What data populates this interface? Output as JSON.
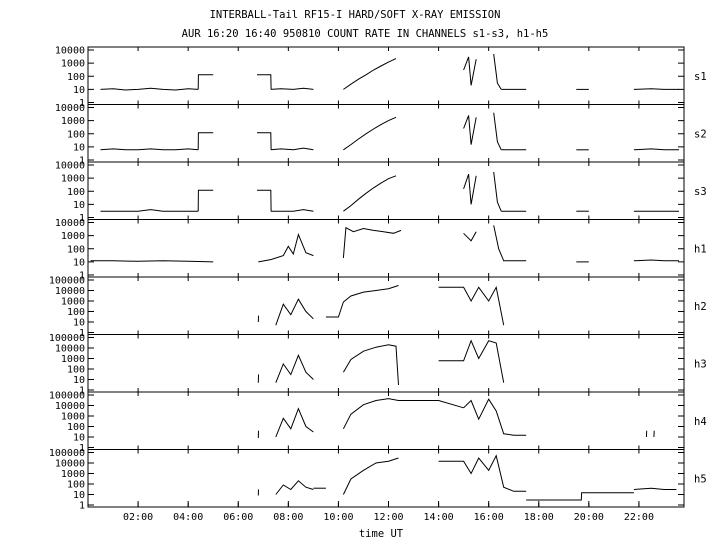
{
  "chart_data": {
    "type": "line",
    "title": "INTERBALL-Tail RF15-I HARD/SOFT X-RAY EMISSION",
    "subtitle": "AUR 16:20 16:40 950810  COUNT RATE IN CHANNELS s1-s3, h1-h5",
    "xlabel": "time UT",
    "x_unit": "hours UT",
    "xlim": [
      0,
      23.8
    ],
    "x_ticks": [
      2,
      4,
      6,
      8,
      10,
      12,
      14,
      16,
      18,
      20,
      22
    ],
    "x_tick_labels": [
      "02:00",
      "04:00",
      "06:00",
      "08:00",
      "10:00",
      "12:00",
      "14:00",
      "16:00",
      "18:00",
      "20:00",
      "22:00"
    ],
    "y_scale": "log",
    "series": [
      {
        "name": "s1",
        "ylim": [
          1,
          10000
        ],
        "y_tick_labels": [
          "10000",
          "1000",
          "100",
          "10",
          "1"
        ],
        "segments": [
          {
            "x": [
              0.5,
              1.0,
              1.5,
              2.0,
              2.5,
              3.0,
              3.5,
              4.0,
              4.4
            ],
            "y": [
              10,
              11,
              9,
              10,
              12,
              10,
              9,
              11,
              10
            ]
          },
          {
            "x": [
              4.4,
              4.41,
              5.0
            ],
            "y": [
              10,
              130,
              130
            ]
          },
          {
            "x": [
              6.75,
              7.3,
              7.31
            ],
            "y": [
              130,
              130,
              10
            ]
          },
          {
            "x": [
              7.3,
              7.7,
              8.2,
              8.6,
              9.0
            ],
            "y": [
              10,
              11,
              10,
              12,
              10
            ]
          },
          {
            "x": [
              10.2,
              10.5,
              10.8,
              11.1,
              11.4,
              11.7,
              12.0,
              12.3
            ],
            "y": [
              10,
              25,
              60,
              130,
              300,
              600,
              1200,
              2200
            ]
          },
          {
            "x": [
              15.0,
              15.2,
              15.3,
              15.5
            ],
            "y": [
              300,
              3000,
              20,
              2000
            ]
          },
          {
            "x": [
              16.2,
              16.35,
              16.5
            ],
            "y": [
              5000,
              30,
              10
            ]
          },
          {
            "x": [
              16.5,
              17.0,
              17.5
            ],
            "y": [
              10,
              10,
              10
            ]
          },
          {
            "x": [
              19.5,
              20.0
            ],
            "y": [
              10,
              10
            ]
          },
          {
            "x": [
              21.8,
              22.5,
              23.0,
              23.6
            ],
            "y": [
              10,
              11,
              10,
              10
            ]
          }
        ]
      },
      {
        "name": "s2",
        "ylim": [
          1,
          10000
        ],
        "y_tick_labels": [
          "10000",
          "1000",
          "100",
          "10",
          "1"
        ],
        "segments": [
          {
            "x": [
              0.5,
              1.0,
              1.5,
              2.0,
              2.5,
              3.0,
              3.5,
              4.0,
              4.4
            ],
            "y": [
              6,
              7,
              6,
              6,
              7,
              6,
              6,
              7,
              6
            ]
          },
          {
            "x": [
              4.4,
              4.41,
              5.0
            ],
            "y": [
              6,
              120,
              120
            ]
          },
          {
            "x": [
              6.75,
              7.3,
              7.31
            ],
            "y": [
              120,
              120,
              6
            ]
          },
          {
            "x": [
              7.3,
              7.7,
              8.2,
              8.6,
              9.0
            ],
            "y": [
              6,
              7,
              6,
              8,
              6
            ]
          },
          {
            "x": [
              10.2,
              10.5,
              10.8,
              11.1,
              11.4,
              11.7,
              12.0,
              12.3
            ],
            "y": [
              6,
              15,
              40,
              100,
              230,
              500,
              1000,
              1800
            ]
          },
          {
            "x": [
              15.0,
              15.2,
              15.3,
              15.5
            ],
            "y": [
              250,
              2500,
              15,
              1800
            ]
          },
          {
            "x": [
              16.2,
              16.35,
              16.5
            ],
            "y": [
              4000,
              25,
              6
            ]
          },
          {
            "x": [
              16.5,
              17.0,
              17.5
            ],
            "y": [
              6,
              6,
              6
            ]
          },
          {
            "x": [
              19.5,
              20.0
            ],
            "y": [
              6,
              6
            ]
          },
          {
            "x": [
              21.8,
              22.5,
              23.0,
              23.6
            ],
            "y": [
              6,
              7,
              6,
              6
            ]
          }
        ]
      },
      {
        "name": "s3",
        "ylim": [
          1,
          10000
        ],
        "y_tick_labels": [
          "10000",
          "1000",
          "100",
          "10",
          "1"
        ],
        "segments": [
          {
            "x": [
              0.5,
              1.0,
              1.5,
              2.0,
              2.5,
              3.0,
              3.5,
              4.0,
              4.4
            ],
            "y": [
              3,
              3,
              3,
              3,
              4,
              3,
              3,
              3,
              3
            ]
          },
          {
            "x": [
              4.4,
              4.41,
              5.0
            ],
            "y": [
              3,
              120,
              120
            ]
          },
          {
            "x": [
              6.75,
              7.3,
              7.31
            ],
            "y": [
              120,
              120,
              3
            ]
          },
          {
            "x": [
              7.3,
              7.7,
              8.2,
              8.6,
              9.0
            ],
            "y": [
              3,
              3,
              3,
              4,
              3
            ]
          },
          {
            "x": [
              10.2,
              10.5,
              10.8,
              11.1,
              11.4,
              11.7,
              12.0,
              12.3
            ],
            "y": [
              3,
              8,
              25,
              70,
              180,
              420,
              900,
              1500
            ]
          },
          {
            "x": [
              15.0,
              15.2,
              15.3,
              15.5
            ],
            "y": [
              150,
              2000,
              10,
              1500
            ]
          },
          {
            "x": [
              16.2,
              16.35,
              16.5
            ],
            "y": [
              3000,
              15,
              3
            ]
          },
          {
            "x": [
              16.5,
              17.0,
              17.5
            ],
            "y": [
              3,
              3,
              3
            ]
          },
          {
            "x": [
              19.5,
              20.0
            ],
            "y": [
              3,
              3
            ]
          },
          {
            "x": [
              21.8,
              22.5,
              23.0,
              23.6
            ],
            "y": [
              3,
              3,
              3,
              3
            ]
          }
        ]
      },
      {
        "name": "h1",
        "ylim": [
          1,
          10000
        ],
        "y_tick_labels": [
          "10000",
          "1000",
          "100",
          "10",
          "1"
        ],
        "segments": [
          {
            "x": [
              0.1,
              1.0,
              2.0,
              3.0,
              4.0,
              5.0
            ],
            "y": [
              12,
              12,
              11,
              12,
              11,
              10
            ]
          },
          {
            "x": [
              6.8,
              7.3,
              7.8,
              8.0,
              8.2,
              8.4,
              8.7,
              9.0
            ],
            "y": [
              10,
              15,
              30,
              150,
              40,
              1200,
              50,
              30
            ]
          },
          {
            "x": [
              10.2,
              10.3,
              10.6,
              11.0,
              11.4,
              11.8,
              12.2,
              12.5
            ],
            "y": [
              20,
              4000,
              2000,
              3500,
              2500,
              2000,
              1500,
              2500
            ]
          },
          {
            "x": [
              15.0,
              15.3,
              15.5
            ],
            "y": [
              1500,
              400,
              2000
            ]
          },
          {
            "x": [
              16.2,
              16.4,
              16.6,
              17.0,
              17.5
            ],
            "y": [
              6000,
              100,
              12,
              12,
              12
            ]
          },
          {
            "x": [
              19.5,
              20.0
            ],
            "y": [
              10,
              10
            ]
          },
          {
            "x": [
              21.8,
              22.5,
              23.0,
              23.6
            ],
            "y": [
              12,
              14,
              12,
              12
            ]
          }
        ]
      },
      {
        "name": "h2",
        "ylim": [
          1,
          100000
        ],
        "y_tick_labels": [
          "100000",
          "10000",
          "1000",
          "100",
          "10",
          "1"
        ],
        "segments": [
          {
            "x": [
              6.8,
              6.81
            ],
            "y": [
              10,
              40
            ]
          },
          {
            "x": [
              7.5,
              7.8,
              8.1,
              8.4,
              8.7,
              9.0
            ],
            "y": [
              5,
              500,
              50,
              1500,
              100,
              20
            ]
          },
          {
            "x": [
              9.5,
              10.0,
              10.2,
              10.5,
              11.0,
              11.5,
              12.0,
              12.4
            ],
            "y": [
              30,
              30,
              800,
              3000,
              7000,
              10000,
              15000,
              30000
            ]
          },
          {
            "x": [
              14.0,
              15.0,
              15.3,
              15.6,
              16.0,
              16.3,
              16.6
            ],
            "y": [
              20000,
              20000,
              1000,
              20000,
              1000,
              20000,
              5
            ]
          }
        ]
      },
      {
        "name": "h3",
        "ylim": [
          1,
          100000
        ],
        "y_tick_labels": [
          "100000",
          "10000",
          "1000",
          "100",
          "10",
          "1"
        ],
        "segments": [
          {
            "x": [
              6.8,
              6.81
            ],
            "y": [
              5,
              30
            ]
          },
          {
            "x": [
              7.5,
              7.8,
              8.1,
              8.4,
              8.7,
              9.0
            ],
            "y": [
              5,
              300,
              30,
              2000,
              50,
              10
            ]
          },
          {
            "x": [
              10.2,
              10.5,
              11.0,
              11.5,
              12.0,
              12.3,
              12.4
            ],
            "y": [
              50,
              800,
              5000,
              12000,
              20000,
              15000,
              3
            ]
          },
          {
            "x": [
              14.0,
              15.0,
              15.3,
              15.6,
              16.0,
              16.3,
              16.6
            ],
            "y": [
              600,
              600,
              50000,
              1000,
              50000,
              30000,
              5
            ]
          }
        ]
      },
      {
        "name": "h4",
        "ylim": [
          1,
          100000
        ],
        "y_tick_labels": [
          "100000",
          "10000",
          "1000",
          "100",
          "10",
          "1"
        ],
        "segments": [
          {
            "x": [
              6.8,
              6.81
            ],
            "y": [
              8,
              40
            ]
          },
          {
            "x": [
              7.5,
              7.8,
              8.1,
              8.4,
              8.7,
              9.0
            ],
            "y": [
              10,
              600,
              60,
              5000,
              100,
              30
            ]
          },
          {
            "x": [
              10.2,
              10.5,
              11.0,
              11.5,
              12.0,
              12.4,
              14.0,
              15.0
            ],
            "y": [
              60,
              1500,
              12000,
              30000,
              45000,
              30000,
              30000,
              6000
            ]
          },
          {
            "x": [
              15.0,
              15.3,
              15.6,
              16.0,
              16.3,
              16.6,
              17.0,
              17.5
            ],
            "y": [
              6000,
              30000,
              500,
              40000,
              3000,
              20,
              15,
              15
            ]
          },
          {
            "x": [
              22.3,
              22.31
            ],
            "y": [
              10,
              40
            ]
          },
          {
            "x": [
              22.6,
              22.61
            ],
            "y": [
              10,
              40
            ]
          }
        ]
      },
      {
        "name": "h5",
        "ylim": [
          1,
          100000
        ],
        "y_tick_labels": [
          "100000",
          "10000",
          "1000",
          "100",
          "10",
          "1"
        ],
        "segments": [
          {
            "x": [
              6.8,
              6.81
            ],
            "y": [
              8,
              30
            ]
          },
          {
            "x": [
              7.5,
              7.8,
              8.1,
              8.4,
              8.7,
              9.0
            ],
            "y": [
              10,
              80,
              30,
              200,
              50,
              30
            ]
          },
          {
            "x": [
              9.0,
              9.5
            ],
            "y": [
              40,
              40
            ]
          },
          {
            "x": [
              10.2,
              10.5,
              11.0,
              11.5,
              12.0,
              12.4
            ],
            "y": [
              10,
              300,
              2000,
              10000,
              15000,
              30000
            ]
          },
          {
            "x": [
              14.0,
              15.0,
              15.3,
              15.6,
              16.0,
              16.3,
              16.6,
              17.0,
              17.5
            ],
            "y": [
              15000,
              15000,
              1000,
              30000,
              2000,
              50000,
              50,
              20,
              20
            ]
          },
          {
            "x": [
              17.5,
              19.7,
              19.71,
              21.8
            ],
            "y": [
              3,
              3,
              15,
              15
            ]
          },
          {
            "x": [
              21.8,
              22.5,
              23.0,
              23.5
            ],
            "y": [
              30,
              40,
              30,
              30
            ]
          }
        ]
      }
    ]
  }
}
